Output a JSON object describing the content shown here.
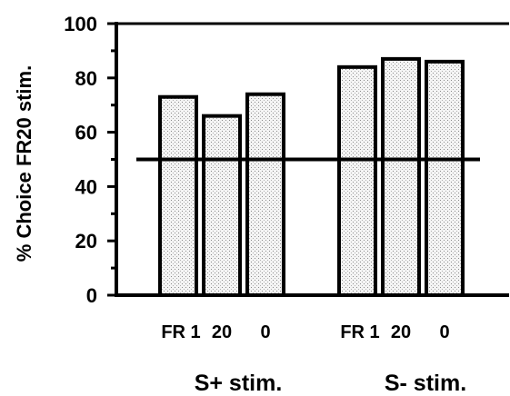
{
  "chart_data": {
    "type": "bar",
    "title": "",
    "ylabel": "% Choice FR20 stim.",
    "xlabel": "",
    "ylim": [
      0,
      100
    ],
    "yticks": [
      0,
      20,
      40,
      60,
      80,
      100
    ],
    "reference_line": 50,
    "grid": false,
    "bar_fill": "stippled light gray",
    "groups": [
      {
        "label": "S+ stim.",
        "categories": [
          "FR 1",
          "20",
          "0"
        ],
        "values": [
          73,
          66,
          74
        ]
      },
      {
        "label": "S- stim.",
        "categories": [
          "FR 1",
          "20",
          "0"
        ],
        "values": [
          84,
          87,
          86
        ]
      }
    ]
  },
  "colors": {
    "bar_fill": "#e6e6e6",
    "stroke": "#000000",
    "background": "#ffffff"
  }
}
